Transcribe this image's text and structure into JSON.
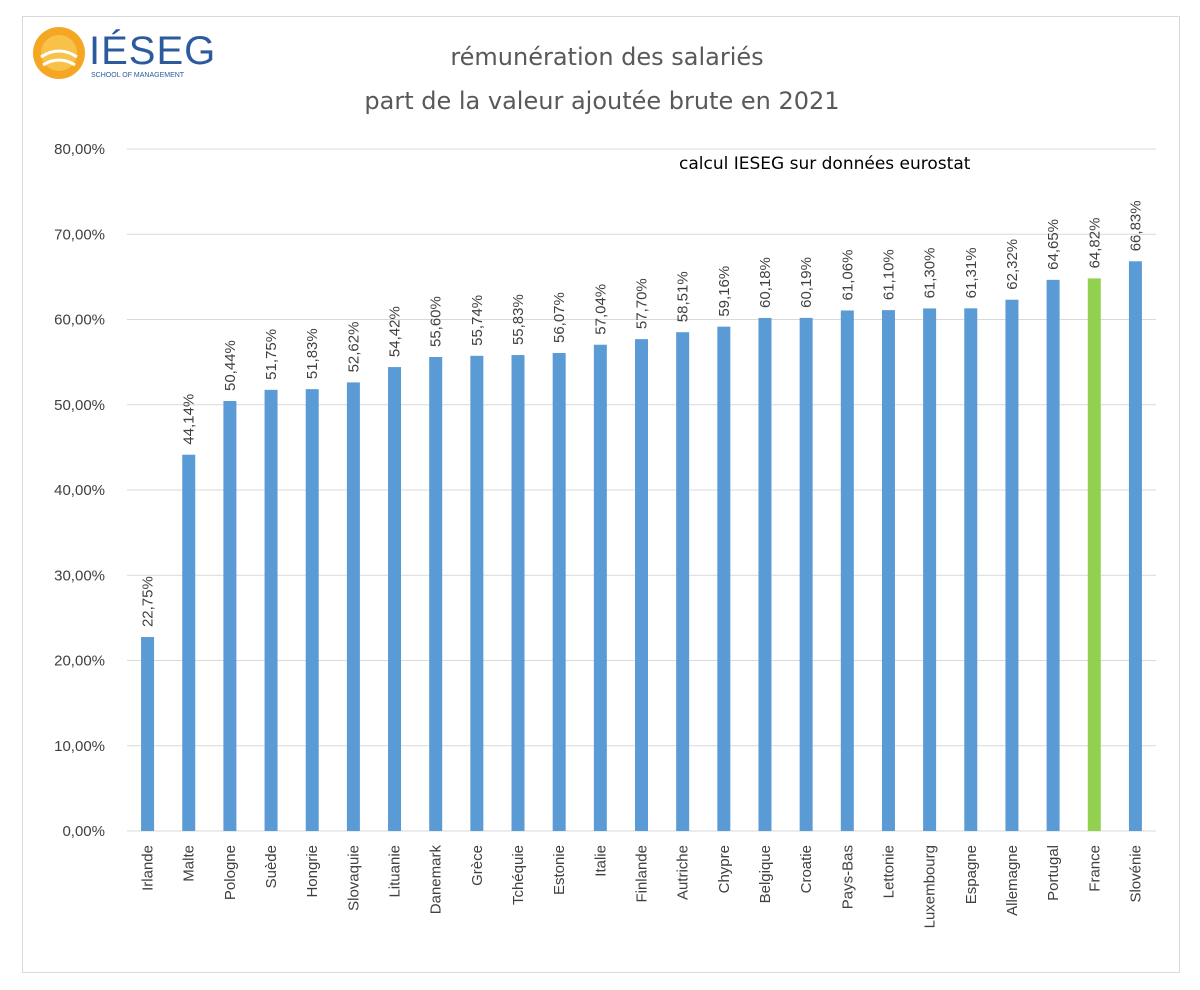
{
  "logo": {
    "name": "IÉSEG",
    "subtitle": "SCHOOL OF MANAGEMENT"
  },
  "chart_data": {
    "type": "bar",
    "title_lines": [
      "rémunération des salariés",
      "part de la valeur ajoutée brute en 2021"
    ],
    "source_note": "calcul IESEG sur données eurostat",
    "categories": [
      "Irlande",
      "Malte",
      "Pologne",
      "Suède",
      "Hongrie",
      "Slovaquie",
      "Lituanie",
      "Danemark",
      "Grèce",
      "Tchéquie",
      "Estonie",
      "Italie",
      "Finlande",
      "Autriche",
      "Chypre",
      "Belgique",
      "Croatie",
      "Pays-Bas",
      "Lettonie",
      "Luxembourg",
      "Espagne",
      "Allemagne",
      "Portugal",
      "France",
      "Slovénie"
    ],
    "values": [
      22.75,
      44.14,
      50.44,
      51.75,
      51.83,
      52.62,
      54.42,
      55.6,
      55.74,
      55.83,
      56.07,
      57.04,
      57.7,
      58.51,
      59.16,
      60.18,
      60.19,
      61.06,
      61.1,
      61.3,
      61.31,
      62.32,
      64.65,
      64.82,
      66.83
    ],
    "value_labels": [
      "22,75%",
      "44,14%",
      "50,44%",
      "51,75%",
      "51,83%",
      "52,62%",
      "54,42%",
      "55,60%",
      "55,74%",
      "55,83%",
      "56,07%",
      "57,04%",
      "57,70%",
      "58,51%",
      "59,16%",
      "60,18%",
      "60,19%",
      "61,06%",
      "61,10%",
      "61,30%",
      "61,31%",
      "62,32%",
      "64,65%",
      "64,82%",
      "66,83%"
    ],
    "highlight_category": "France",
    "y_ticks": [
      "0,00%",
      "10,00%",
      "20,00%",
      "30,00%",
      "40,00%",
      "50,00%",
      "60,00%",
      "70,00%",
      "80,00%"
    ],
    "ylim": [
      0,
      80
    ],
    "grid": true,
    "colors": {
      "bar": "#5b9bd5",
      "highlight": "#92d050",
      "grid": "#d9d9d9"
    }
  }
}
